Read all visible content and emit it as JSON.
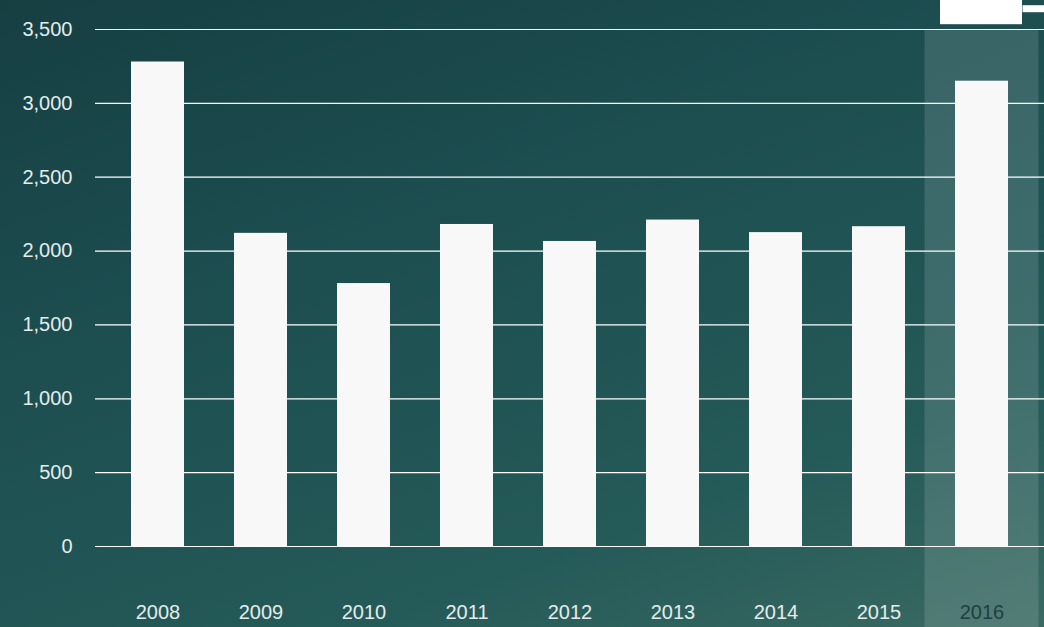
{
  "chart_data": {
    "type": "bar",
    "categories": [
      "2008",
      "2009",
      "2010",
      "2011",
      "2012",
      "2013",
      "2014",
      "2015",
      "2016"
    ],
    "values": [
      3280,
      2120,
      1780,
      2180,
      2065,
      2210,
      2125,
      2165,
      3150
    ],
    "color": "#f8f8f8",
    "ylim": [
      0,
      3500
    ],
    "yticks": [
      0,
      500,
      1000,
      1500,
      2000,
      2500,
      3000,
      3500
    ],
    "grid": true
  }
}
